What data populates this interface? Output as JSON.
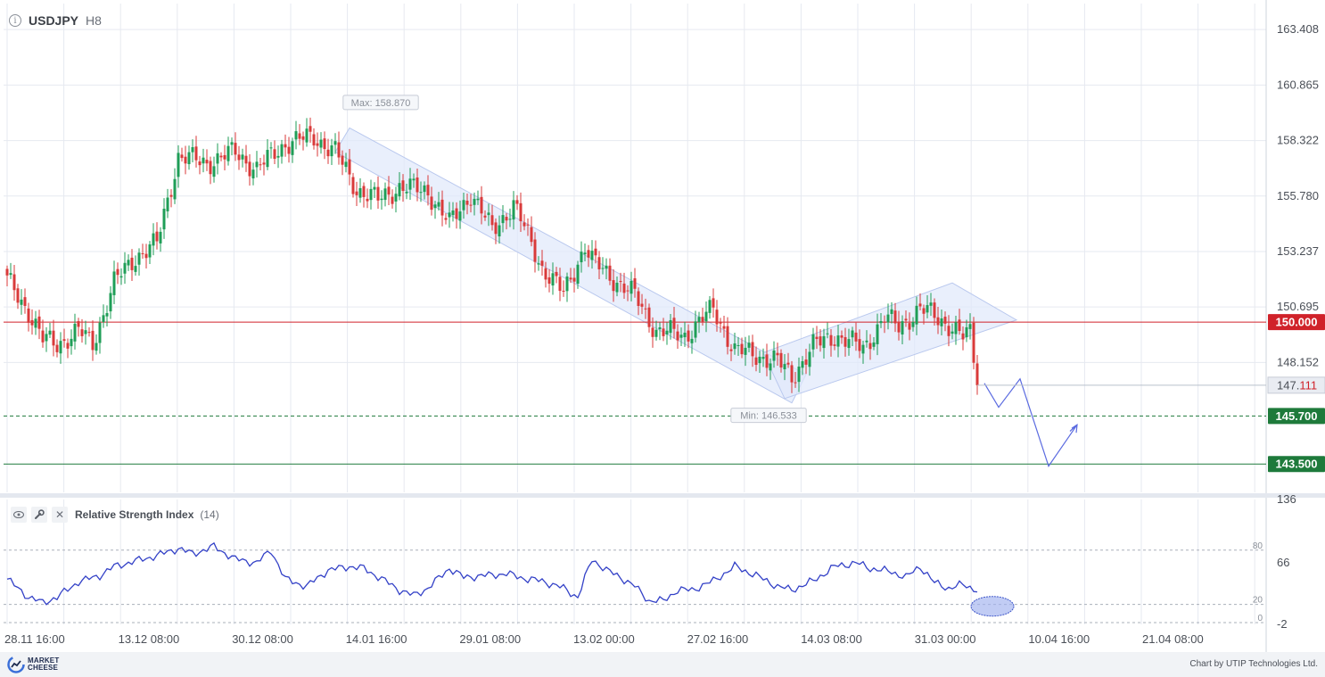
{
  "header": {
    "symbol": "USDJPY",
    "timeframe": "H8",
    "info_icon": "info-icon"
  },
  "price_axis": {
    "ticks": [
      "163.408",
      "160.865",
      "158.322",
      "155.780",
      "153.237",
      "150.695",
      "148.152"
    ],
    "tick_values": [
      163.408,
      160.865,
      158.322,
      155.78,
      153.237,
      150.695,
      148.152
    ],
    "current_price_main": "147.",
    "current_price_frac": "111",
    "current_price": 147.111
  },
  "levels": [
    {
      "label": "150.000",
      "value": 150.0,
      "color": "#d0222a",
      "style": "solid"
    },
    {
      "label": "145.700",
      "value": 145.7,
      "color": "#1e7a3b",
      "style": "dashed"
    },
    {
      "label": "143.500",
      "value": 143.5,
      "color": "#1e7a3b",
      "style": "solid"
    }
  ],
  "annotations": {
    "max_label": "Max: 158.870",
    "max_value": 158.87,
    "min_label": "Min: 146.533",
    "min_value": 146.533
  },
  "time_axis": [
    "28.11 16:00",
    "13.12 08:00",
    "30.12 08:00",
    "14.01 16:00",
    "29.01 08:00",
    "13.02 00:00",
    "27.02 16:00",
    "14.03 08:00",
    "31.03 00:00",
    "10.04 16:00",
    "21.04 08:00"
  ],
  "rsi": {
    "title": "Relative Strength Index",
    "period": "(14)",
    "axis_ticks": [
      "136",
      "66",
      "-2"
    ],
    "axis_values": [
      136,
      66,
      -2
    ],
    "levels": [
      "80",
      "20",
      "0"
    ],
    "level_values": [
      80,
      20,
      0
    ],
    "icons": [
      "eye-icon",
      "wrench-icon",
      "close-icon"
    ]
  },
  "footer": {
    "logo_line1": "MARKET",
    "logo_line2": "CHEESE",
    "credit": "Chart by UTIP Technologies Ltd."
  },
  "colors": {
    "up": "#1f9e57",
    "down": "#d93a3a",
    "rsi_line": "#3341c7",
    "forecast": "#5b6be0",
    "channel_fill": "#dfe8fb",
    "grid": "#e6e9f0",
    "level_red": "#d0222a",
    "level_green": "#1e7a3b"
  },
  "chart_data": {
    "type": "candlestick",
    "symbol": "USDJPY",
    "timeframe": "H8",
    "y_range": [
      142.2,
      164.6
    ],
    "x_labels": [
      "28.11 16:00",
      "13.12 08:00",
      "30.12 08:00",
      "14.01 16:00",
      "29.01 08:00",
      "13.02 00:00",
      "27.02 16:00",
      "14.03 08:00",
      "31.03 00:00",
      "10.04 16:00",
      "21.04 08:00"
    ],
    "anchors": [
      [
        0,
        151.9
      ],
      [
        6,
        150.5
      ],
      [
        10,
        149.2
      ],
      [
        14,
        149.0
      ],
      [
        20,
        149.6
      ],
      [
        24,
        149.0
      ],
      [
        30,
        151.8
      ],
      [
        36,
        153.0
      ],
      [
        42,
        153.6
      ],
      [
        48,
        157.6
      ],
      [
        56,
        157.3
      ],
      [
        64,
        157.8
      ],
      [
        70,
        157.0
      ],
      [
        78,
        158.2
      ],
      [
        86,
        158.5
      ],
      [
        92,
        157.8
      ],
      [
        98,
        156.1
      ],
      [
        104,
        155.6
      ],
      [
        110,
        156.2
      ],
      [
        118,
        156.0
      ],
      [
        124,
        154.5
      ],
      [
        130,
        155.9
      ],
      [
        136,
        154.2
      ],
      [
        142,
        155.4
      ],
      [
        150,
        152.5
      ],
      [
        156,
        151.3
      ],
      [
        162,
        153.5
      ],
      [
        164,
        152.8
      ],
      [
        170,
        152.0
      ],
      [
        176,
        151.2
      ],
      [
        182,
        149.6
      ],
      [
        190,
        149.4
      ],
      [
        198,
        150.6
      ],
      [
        204,
        148.7
      ],
      [
        210,
        148.5
      ],
      [
        216,
        148.2
      ],
      [
        220,
        147.5
      ],
      [
        226,
        148.9
      ],
      [
        232,
        149.4
      ],
      [
        240,
        148.8
      ],
      [
        246,
        150.2
      ],
      [
        250,
        149.8
      ],
      [
        256,
        150.6
      ],
      [
        260,
        150.3
      ],
      [
        264,
        149.9
      ],
      [
        268,
        149.3
      ],
      [
        270,
        149.5
      ],
      [
        272,
        147.3
      ]
    ],
    "last_close": 147.111,
    "forecast_path": [
      [
        0,
        147.2
      ],
      [
        4,
        146.1
      ],
      [
        10,
        147.4
      ],
      [
        18,
        143.4
      ],
      [
        26,
        145.3
      ],
      [
        24,
        145.0
      ]
    ],
    "rsi": {
      "y_range": [
        -2,
        136
      ],
      "anchors": [
        [
          0,
          48
        ],
        [
          6,
          28
        ],
        [
          10,
          22
        ],
        [
          14,
          28
        ],
        [
          20,
          45
        ],
        [
          26,
          52
        ],
        [
          30,
          62
        ],
        [
          36,
          68
        ],
        [
          42,
          74
        ],
        [
          48,
          82
        ],
        [
          52,
          76
        ],
        [
          58,
          84
        ],
        [
          64,
          70
        ],
        [
          70,
          66
        ],
        [
          74,
          80
        ],
        [
          78,
          48
        ],
        [
          84,
          40
        ],
        [
          90,
          58
        ],
        [
          96,
          62
        ],
        [
          100,
          60
        ],
        [
          106,
          46
        ],
        [
          110,
          36
        ],
        [
          114,
          30
        ],
        [
          118,
          38
        ],
        [
          124,
          60
        ],
        [
          128,
          50
        ],
        [
          134,
          52
        ],
        [
          140,
          54
        ],
        [
          146,
          48
        ],
        [
          150,
          46
        ],
        [
          156,
          38
        ],
        [
          160,
          28
        ],
        [
          164,
          70
        ],
        [
          168,
          58
        ],
        [
          172,
          50
        ],
        [
          176,
          40
        ],
        [
          180,
          24
        ],
        [
          184,
          24
        ],
        [
          188,
          36
        ],
        [
          192,
          36
        ],
        [
          198,
          46
        ],
        [
          204,
          62
        ],
        [
          210,
          52
        ],
        [
          216,
          40
        ],
        [
          220,
          36
        ],
        [
          226,
          46
        ],
        [
          232,
          62
        ],
        [
          238,
          66
        ],
        [
          242,
          60
        ],
        [
          248,
          56
        ],
        [
          252,
          50
        ],
        [
          256,
          62
        ],
        [
          260,
          44
        ],
        [
          264,
          38
        ],
        [
          268,
          42
        ],
        [
          272,
          36
        ]
      ]
    }
  }
}
